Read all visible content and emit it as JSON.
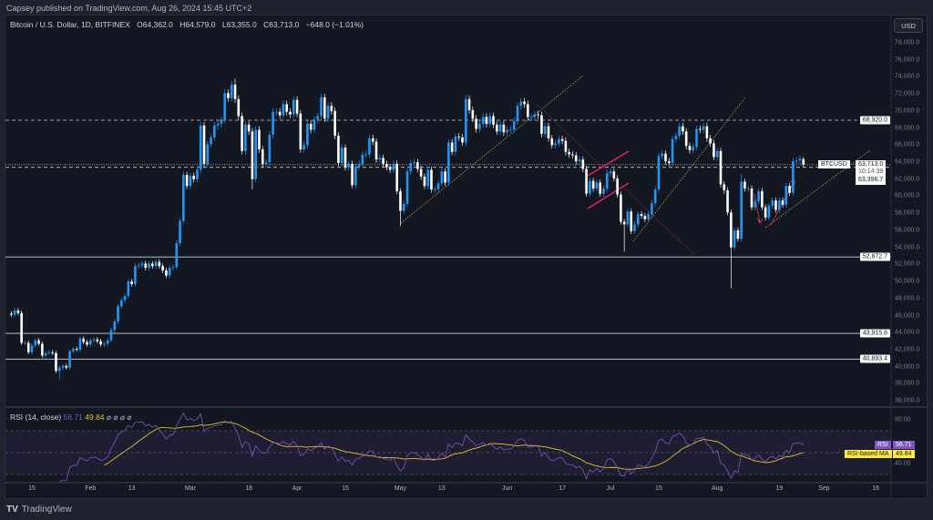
{
  "publish_line": "Capsey published on TradingView.com, Aug 26, 2024 15:45 UTC+2",
  "legend": {
    "symbol": "Bitcoin / U.S. Dollar, 1D, BITFINEX",
    "open": "O64,362.0",
    "high": "H64,579.0",
    "low": "L63,355.0",
    "close": "C63,713.0",
    "change": "−648.0 (−1.01%)"
  },
  "currency_button": "USD",
  "symbol_tag": "BTCUSD",
  "price_tags": {
    "last": "63,713.0",
    "countdown": "10:14:39",
    "level": "63,396.7"
  },
  "level_tags": [
    "68,920.0",
    "52,872.7",
    "43,915.6",
    "40,893.4"
  ],
  "rsi": {
    "title": "RSI (14, close)",
    "value": "56.71",
    "ma_value": "49.84",
    "icons": "⌀ ⌀ ⌀ ⌀",
    "rsi_tag": "RSI",
    "ma_tag": "RSI-based MA",
    "axis": [
      "80.00",
      "40.00"
    ]
  },
  "footer": {
    "brand": "TradingView"
  },
  "colors": {
    "up": "#2196f3",
    "down": "#ffffff",
    "background": "#131722",
    "rsi_line": "#7e57c2",
    "rsi_ma": "#e6c229",
    "trendline": "#b5a642",
    "flag": "#e91e63"
  },
  "chart_data": {
    "type": "candlestick",
    "symbol": "BTCUSD",
    "start_date": "2024-01-09",
    "interval": "1D",
    "closes": [
      46100,
      46600,
      46300,
      42800,
      42800,
      41700,
      42500,
      43100,
      42700,
      41300,
      41600,
      41700,
      41600,
      39500,
      39900,
      40100,
      39900,
      41800,
      42100,
      42000,
      43300,
      42900,
      42600,
      43100,
      43200,
      43000,
      42600,
      42700,
      43100,
      44300,
      45300,
      47100,
      47800,
      48300,
      50000,
      49700,
      51800,
      51900,
      52100,
      51600,
      52100,
      51800,
      52300,
      51800,
      51300,
      50700,
      51600,
      51700,
      54500,
      57100,
      62500,
      61200,
      62400,
      62000,
      63100,
      68300,
      63800,
      66100,
      66900,
      68300,
      68500,
      69000,
      72100,
      71500,
      73100,
      71400,
      69400,
      65300,
      68400,
      67600,
      62000,
      67800,
      65500,
      63800,
      64000,
      67200,
      69900,
      69900,
      69500,
      70800,
      69900,
      69600,
      71300,
      69700,
      65500,
      66000,
      68500,
      67800,
      69000,
      69400,
      71600,
      69100,
      70600,
      70000,
      67100,
      63900,
      65700,
      63400,
      63800,
      61300,
      63500,
      63800,
      64900,
      64900,
      66800,
      66400,
      64300,
      64500,
      63800,
      63400,
      63100,
      63800,
      60600,
      58300,
      59100,
      62900,
      63900,
      64000,
      63200,
      62300,
      61200,
      63100,
      60800,
      60800,
      61500,
      62900,
      61600,
      66300,
      65200,
      67000,
      66900,
      66300,
      71400,
      70100,
      69100,
      67900,
      68500,
      69300,
      68500,
      69400,
      68400,
      67600,
      68400,
      67500,
      67800,
      67800,
      68800,
      70600,
      71100,
      70800,
      69300,
      69300,
      69600,
      69500,
      67300,
      68200,
      66800,
      66000,
      66200,
      66700,
      66500,
      65200,
      64900,
      64800,
      64100,
      64300,
      63200,
      60300,
      61800,
      60900,
      61600,
      60300,
      60900,
      62700,
      62900,
      62100,
      60200,
      57000,
      56700,
      58200,
      55900,
      56700,
      57900,
      57700,
      57300,
      57900,
      59200,
      60800,
      64700,
      65000,
      64100,
      63900,
      66700,
      67100,
      68200,
      67600,
      65900,
      65400,
      65800,
      67900,
      67800,
      68200,
      66800,
      66200,
      64600,
      65300,
      61400,
      60700,
      58100,
      54000,
      56000,
      55000,
      61700,
      60900,
      60900,
      58700,
      59400,
      60600,
      58700,
      57500,
      58900,
      59500,
      58400,
      59500,
      59000,
      61200,
      60400,
      64100,
      64200,
      64400,
      63713
    ],
    "last_candle": {
      "date": "2024-08-26",
      "open": 64362,
      "high": 64579,
      "low": 63355,
      "close": 63713
    },
    "wick_extremes": [
      {
        "date": "2024-01-23",
        "low": 38500
      },
      {
        "date": "2024-03-14",
        "high": 73800
      },
      {
        "date": "2024-03-19",
        "low": 60800
      },
      {
        "date": "2024-05-01",
        "low": 56500
      },
      {
        "date": "2024-07-05",
        "low": 53500
      },
      {
        "date": "2024-08-05",
        "low": 49200
      },
      {
        "date": "2024-08-08",
        "high": 62600
      }
    ],
    "y_ticks": [
      78000,
      76000,
      74000,
      72000,
      70000,
      68000,
      66000,
      64000,
      62000,
      60000,
      58000,
      56000,
      54000,
      52000,
      50000,
      48000,
      46000,
      44000,
      42000,
      40000,
      38000,
      36000
    ],
    "y_tick_labels": [
      "78,000.0",
      "76,000.0",
      "74,000.0",
      "72,000.0",
      "70,000.0",
      "68,000.0",
      "66,000.0",
      "64,000.0",
      "62,000.0",
      "60,000.0",
      "58,000.0",
      "56,000.0",
      "54,000.0",
      "52,000.0",
      "50,000.0",
      "48,000.0",
      "46,000.0",
      "44,000.0",
      "42,000.0",
      "40,000.0",
      "38,000.0",
      "36,000.0"
    ],
    "horizontal_levels": [
      {
        "price": 68920,
        "style": "dashed"
      },
      {
        "price": 63396.7,
        "style": "dashed"
      },
      {
        "price": 63713,
        "style": "dotted"
      },
      {
        "price": 52872.7,
        "style": "solid"
      },
      {
        "price": 43915.6,
        "style": "solid"
      },
      {
        "price": 40893.4,
        "style": "solid"
      }
    ],
    "x_ticks": [
      {
        "label": "15",
        "date": "2024-01-15"
      },
      {
        "label": "Feb",
        "date": "2024-02-01"
      },
      {
        "label": "13",
        "date": "2024-02-13"
      },
      {
        "label": "Mar",
        "date": "2024-03-01"
      },
      {
        "label": "18",
        "date": "2024-03-18"
      },
      {
        "label": "Apr",
        "date": "2024-04-01"
      },
      {
        "label": "15",
        "date": "2024-04-15"
      },
      {
        "label": "May",
        "date": "2024-05-01"
      },
      {
        "label": "13",
        "date": "2024-05-13"
      },
      {
        "label": "Jun",
        "date": "2024-06-01"
      },
      {
        "label": "17",
        "date": "2024-06-17"
      },
      {
        "label": "Jul",
        "date": "2024-07-01"
      },
      {
        "label": "15",
        "date": "2024-07-15"
      },
      {
        "label": "Aug",
        "date": "2024-08-01"
      },
      {
        "label": "19",
        "date": "2024-08-19"
      },
      {
        "label": "Sep",
        "date": "2024-09-01"
      },
      {
        "label": "16",
        "date": "2024-09-16"
      }
    ],
    "rsi_levels": {
      "upper": 70,
      "middle": 50,
      "lower": 30
    }
  }
}
